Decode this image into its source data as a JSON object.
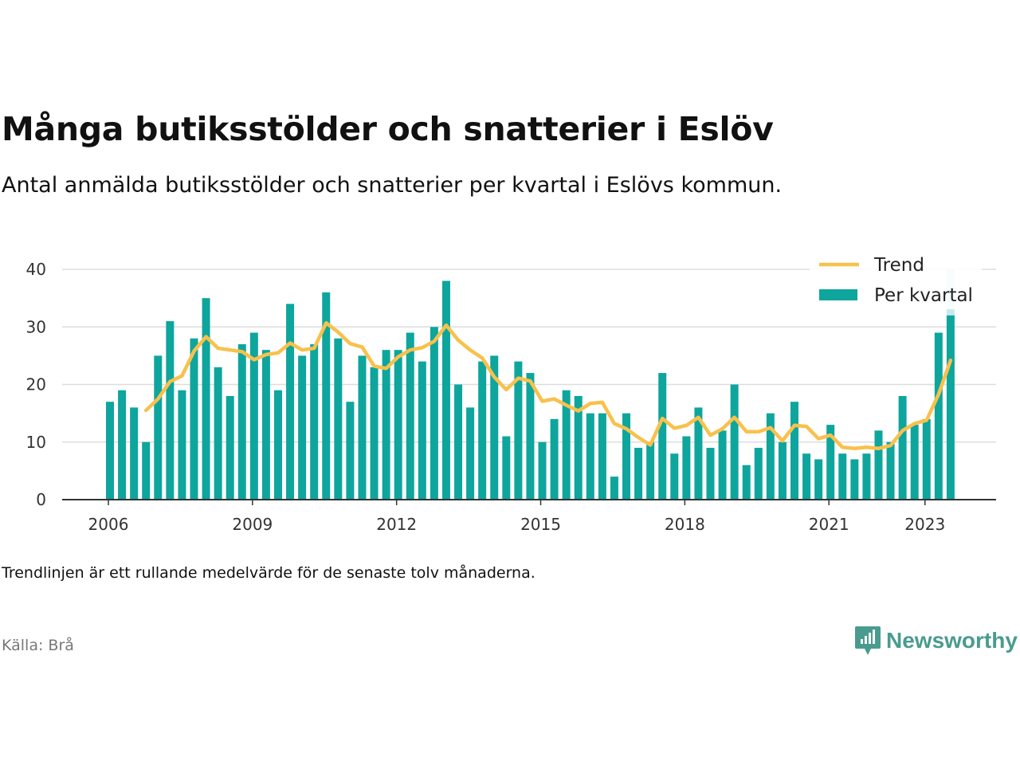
{
  "title": "Många butiksstölder och snatterier i Eslöv",
  "subtitle": "Antal anmälda butiksstölder och snatterier per kvartal i Eslövs kommun.",
  "footnote": "Trendlinjen är ett rullande medelvärde för de senaste tolv månaderna.",
  "source": "Källa: Brå",
  "brand": "Newsworthy",
  "colors": {
    "bar": "#0ea59d",
    "bar_highlight": "#c8ebe9",
    "trend": "#f8c14c",
    "grid": "#dddddd",
    "axis": "#333333",
    "brand": "#4a9b8f"
  },
  "chart_data": {
    "type": "bar",
    "ylim": [
      0,
      40
    ],
    "yticks": [
      0,
      10,
      20,
      30,
      40
    ],
    "xticks": [
      "2006",
      "2009",
      "2012",
      "2015",
      "2018",
      "2021",
      "2023"
    ],
    "x_start": "2006 Q1",
    "legend": {
      "position": "top-right",
      "items": [
        "Trend",
        "Per kvartal"
      ]
    },
    "series": [
      {
        "name": "Per kvartal",
        "type": "bar",
        "values": [
          17,
          19,
          16,
          10,
          25,
          31,
          19,
          28,
          35,
          23,
          18,
          27,
          29,
          26,
          19,
          34,
          25,
          27,
          36,
          28,
          17,
          25,
          23,
          26,
          26,
          29,
          24,
          30,
          38,
          20,
          16,
          24,
          25,
          11,
          24,
          22,
          10,
          14,
          19,
          18,
          15,
          15,
          4,
          15,
          9,
          10,
          22,
          8,
          11,
          16,
          9,
          12,
          20,
          6,
          9,
          15,
          10,
          17,
          8,
          7,
          13,
          8,
          7,
          8,
          12,
          10,
          18,
          13,
          14,
          29,
          32
        ]
      },
      {
        "name": "Trend",
        "type": "line",
        "values": [
          null,
          null,
          null,
          15.5,
          17.5,
          20.5,
          21.5,
          25.8,
          28.3,
          26.3,
          26,
          25.7,
          24.3,
          25.2,
          25.5,
          27.2,
          26,
          26.3,
          30.7,
          29.1,
          27.1,
          26.5,
          23.2,
          22.8,
          24.8,
          26,
          26.4,
          27.5,
          30.3,
          27.7,
          26,
          24.6,
          21.3,
          19.1,
          21.1,
          20.6,
          17.1,
          17.5,
          16.4,
          15.4,
          16.7,
          16.9,
          13.2,
          12.3,
          10.8,
          9.5,
          14.1,
          12.4,
          12.9,
          14.3,
          11.2,
          12.3,
          14.3,
          11.8,
          11.8,
          12.5,
          10.2,
          12.9,
          12.7,
          10.6,
          11.2,
          9.1,
          8.9,
          9.1,
          8.9,
          9.4,
          12,
          13.2,
          13.8,
          18.3,
          24.2
        ]
      }
    ]
  }
}
